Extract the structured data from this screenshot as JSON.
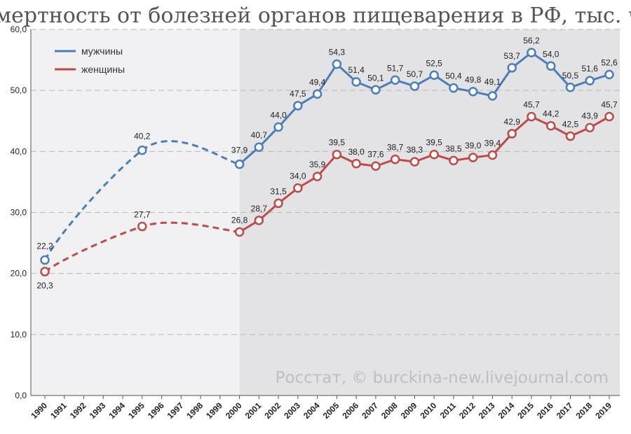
{
  "chart_data": {
    "type": "line",
    "title": "Смертность от болезней органов пищеварения в РФ, тыс. чел.",
    "source": "Росстат, © burckina-new.livejournal.com",
    "categories": [
      "1990",
      "1991",
      "1992",
      "1993",
      "1994",
      "1995",
      "1996",
      "1997",
      "1998",
      "1999",
      "2000",
      "2001",
      "2002",
      "2003",
      "2004",
      "2005",
      "2006",
      "2007",
      "2008",
      "2009",
      "2010",
      "2011",
      "2012",
      "2013",
      "2014",
      "2015",
      "2016",
      "2017",
      "2018",
      "2019"
    ],
    "ylim": [
      0,
      60
    ],
    "yticks": [
      "0,0",
      "10,0",
      "20,0",
      "30,0",
      "40,0",
      "50,0",
      "60,0"
    ],
    "shaded_from": "2000",
    "series": [
      {
        "name": "мужчины",
        "color": "#4a7ebb",
        "points": [
          {
            "year": "1990",
            "value": 22.2,
            "label": "22,2"
          },
          {
            "year": "1995",
            "value": 40.2,
            "label": "40,2"
          },
          {
            "year": "2000",
            "value": 37.9,
            "label": "37,9"
          },
          {
            "year": "2001",
            "value": 40.7,
            "label": "40,7"
          },
          {
            "year": "2002",
            "value": 44.0,
            "label": "44,0"
          },
          {
            "year": "2003",
            "value": 47.5,
            "label": "47,5"
          },
          {
            "year": "2004",
            "value": 49.4,
            "label": "49,4"
          },
          {
            "year": "2005",
            "value": 54.3,
            "label": "54,3"
          },
          {
            "year": "2006",
            "value": 51.4,
            "label": "51,4"
          },
          {
            "year": "2007",
            "value": 50.1,
            "label": "50,1"
          },
          {
            "year": "2008",
            "value": 51.7,
            "label": "51,7"
          },
          {
            "year": "2009",
            "value": 50.7,
            "label": "50,7"
          },
          {
            "year": "2010",
            "value": 52.5,
            "label": "52,5"
          },
          {
            "year": "2011",
            "value": 50.4,
            "label": "50,4"
          },
          {
            "year": "2012",
            "value": 49.8,
            "label": "49,8"
          },
          {
            "year": "2013",
            "value": 49.1,
            "label": "49,1"
          },
          {
            "year": "2014",
            "value": 53.7,
            "label": "53,7"
          },
          {
            "year": "2015",
            "value": 56.2,
            "label": "56,2"
          },
          {
            "year": "2016",
            "value": 54.0,
            "label": "54,0"
          },
          {
            "year": "2017",
            "value": 50.5,
            "label": "50,5"
          },
          {
            "year": "2018",
            "value": 51.6,
            "label": "51,6"
          },
          {
            "year": "2019",
            "value": 52.6,
            "label": "52,6"
          }
        ]
      },
      {
        "name": "женщины",
        "color": "#be4b48",
        "points": [
          {
            "year": "1990",
            "value": 20.3,
            "label": "20,3"
          },
          {
            "year": "1995",
            "value": 27.7,
            "label": "27,7"
          },
          {
            "year": "2000",
            "value": 26.8,
            "label": "26,8"
          },
          {
            "year": "2001",
            "value": 28.7,
            "label": "28,7"
          },
          {
            "year": "2002",
            "value": 31.5,
            "label": "31,5"
          },
          {
            "year": "2003",
            "value": 34.0,
            "label": "34,0"
          },
          {
            "year": "2004",
            "value": 35.9,
            "label": "35,9"
          },
          {
            "year": "2005",
            "value": 39.5,
            "label": "39,5"
          },
          {
            "year": "2006",
            "value": 38.0,
            "label": "38,0"
          },
          {
            "year": "2007",
            "value": 37.6,
            "label": "37,6"
          },
          {
            "year": "2008",
            "value": 38.7,
            "label": "38,7"
          },
          {
            "year": "2009",
            "value": 38.3,
            "label": "38,3"
          },
          {
            "year": "2010",
            "value": 39.5,
            "label": "39,5"
          },
          {
            "year": "2011",
            "value": 38.5,
            "label": "38,5"
          },
          {
            "year": "2012",
            "value": 39.0,
            "label": "39,0"
          },
          {
            "year": "2013",
            "value": 39.4,
            "label": "39,4"
          },
          {
            "year": "2014",
            "value": 42.9,
            "label": "42,9"
          },
          {
            "year": "2015",
            "value": 45.7,
            "label": "45,7"
          },
          {
            "year": "2016",
            "value": 44.2,
            "label": "44,2"
          },
          {
            "year": "2017",
            "value": 42.5,
            "label": "42,5"
          },
          {
            "year": "2018",
            "value": 43.9,
            "label": "43,9"
          },
          {
            "year": "2019",
            "value": 45.7,
            "label": "45,7"
          }
        ]
      }
    ]
  }
}
